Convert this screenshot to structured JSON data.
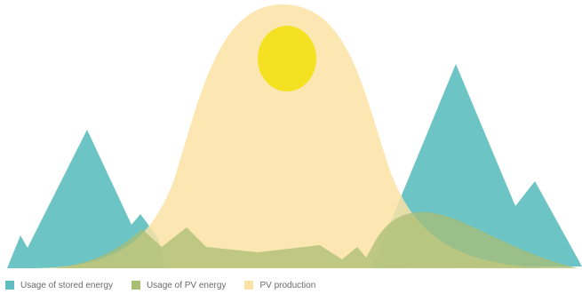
{
  "legend": {
    "items": [
      {
        "label": "Usage of stored energy",
        "color": "#5fbfc0"
      },
      {
        "label": "Usage of PV energy",
        "color": "#a9bd73"
      },
      {
        "label": "PV production",
        "color": "#fbe3a5"
      }
    ]
  },
  "colors": {
    "stored_energy": "#5fbfc0",
    "pv_energy": "#a9bd73",
    "pv_production": "#fbe3a5",
    "sun": "#f4e122"
  },
  "icons": {
    "sun": "sun-icon"
  }
}
